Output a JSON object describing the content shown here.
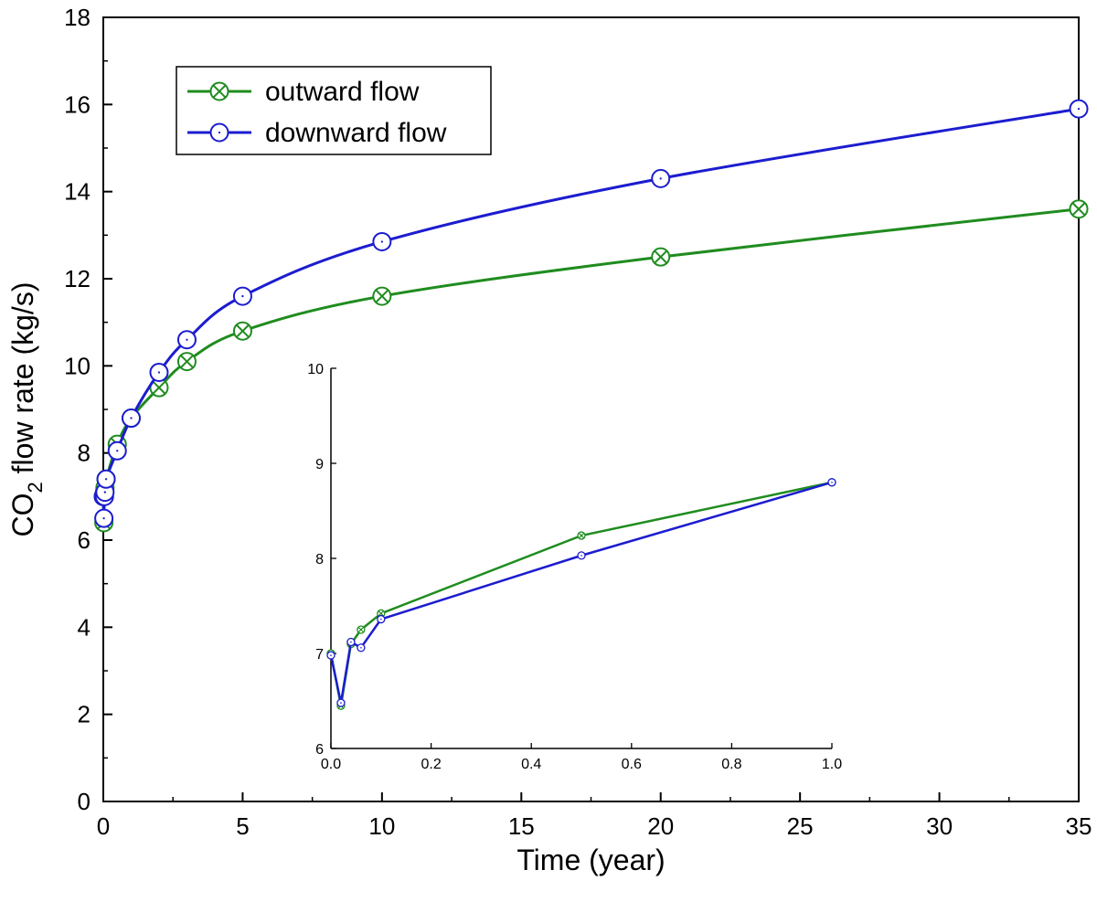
{
  "chart_data": [
    {
      "type": "line",
      "xlabel": "Time (year)",
      "ylabel_main": "CO",
      "ylabel_sub": "2",
      "ylabel_rest": " flow rate (kg/s)",
      "xlim": [
        0,
        35
      ],
      "ylim": [
        0,
        18
      ],
      "xticks": [
        0,
        5,
        10,
        15,
        20,
        25,
        30,
        35
      ],
      "yticks": [
        0,
        2,
        4,
        6,
        8,
        10,
        12,
        14,
        16,
        18
      ],
      "legend_position": "top-left",
      "series": [
        {
          "name": "outward flow",
          "color": "#1f8c1f",
          "marker": "circle-x",
          "x": [
            0.0,
            0.02,
            0.04,
            0.06,
            0.1,
            0.5,
            1,
            2,
            3,
            5,
            10,
            20,
            35
          ],
          "y": [
            7.0,
            6.4,
            7.1,
            7.2,
            7.4,
            8.2,
            8.8,
            9.5,
            10.1,
            10.8,
            11.6,
            12.5,
            13.6
          ]
        },
        {
          "name": "downward flow",
          "color": "#1c1cd0",
          "marker": "circle",
          "x": [
            0.0,
            0.02,
            0.04,
            0.06,
            0.1,
            0.5,
            1,
            2,
            3,
            5,
            10,
            20,
            35
          ],
          "y": [
            7.0,
            6.5,
            7.0,
            7.1,
            7.4,
            8.05,
            8.8,
            9.85,
            10.6,
            11.6,
            12.85,
            14.3,
            15.9
          ]
        }
      ]
    },
    {
      "type": "line",
      "role": "inset",
      "xlim": [
        0.0,
        1.0
      ],
      "ylim": [
        6,
        10
      ],
      "xticks": [
        "0.0",
        "0.2",
        "0.4",
        "0.6",
        "0.8",
        "1.0"
      ],
      "yticks": [
        "6",
        "7",
        "8",
        "9",
        "10"
      ],
      "series": [
        {
          "name": "outward flow",
          "color": "#1f8c1f",
          "marker": "circle-x",
          "x": [
            0.0,
            0.02,
            0.04,
            0.06,
            0.1,
            0.5,
            1.0
          ],
          "y": [
            7.0,
            6.45,
            7.1,
            7.25,
            7.42,
            8.24,
            8.8
          ]
        },
        {
          "name": "downward flow",
          "color": "#1c1cd0",
          "marker": "circle",
          "x": [
            0.0,
            0.02,
            0.04,
            0.06,
            0.1,
            0.5,
            1.0
          ],
          "y": [
            6.98,
            6.48,
            7.12,
            7.06,
            7.36,
            8.03,
            8.8
          ]
        }
      ]
    }
  ]
}
